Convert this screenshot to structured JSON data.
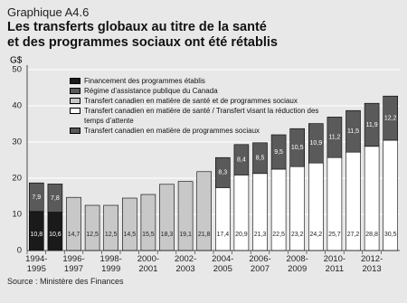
{
  "chart_data": {
    "type": "bar",
    "stacked": true,
    "label": "Graphique A4.6",
    "title": [
      "Les transferts globaux au titre de la santé",
      "et des programmes sociaux ont été rétablis"
    ],
    "y_label": "G$",
    "source": "Source : Ministère des Finances",
    "categories": [
      "1994-1995",
      null,
      "1996-1997",
      null,
      "1998-1999",
      null,
      "2000-2001",
      null,
      "2002-2003",
      null,
      "2004-2005",
      null,
      "2006-2007",
      null,
      "2008-2009",
      null,
      "2010-2011",
      null,
      "2012-2013",
      null
    ],
    "ylim": [
      0,
      50
    ],
    "yticks": [
      0,
      10,
      20,
      30,
      40,
      50
    ],
    "grid": true,
    "series": [
      {
        "name": "Financement des programmes établis",
        "color": "#1a1a1a",
        "values": [
          10.8,
          10.6,
          null,
          null,
          null,
          null,
          null,
          null,
          null,
          null,
          null,
          null,
          null,
          null,
          null,
          null,
          null,
          null,
          null,
          null
        ],
        "value_labels": [
          "10,8",
          "10,6",
          null,
          null,
          null,
          null,
          null,
          null,
          null,
          null,
          null,
          null,
          null,
          null,
          null,
          null,
          null,
          null,
          null,
          null
        ]
      },
      {
        "name": "Régime d’assistance publique du Canada",
        "color": "#5a5a5a",
        "values": [
          7.9,
          7.8,
          null,
          null,
          null,
          null,
          null,
          null,
          null,
          null,
          null,
          null,
          null,
          null,
          null,
          null,
          null,
          null,
          null,
          null
        ],
        "value_labels": [
          "7,9",
          "7,8",
          null,
          null,
          null,
          null,
          null,
          null,
          null,
          null,
          null,
          null,
          null,
          null,
          null,
          null,
          null,
          null,
          null,
          null
        ]
      },
      {
        "name": "Transfert canadien en matière de santé et de programmes sociaux",
        "color": "#c8c8c8",
        "values": [
          null,
          null,
          14.7,
          12.5,
          12.5,
          14.5,
          15.5,
          18.3,
          19.1,
          21.8,
          null,
          null,
          null,
          null,
          null,
          null,
          null,
          null,
          null,
          null
        ],
        "value_labels": [
          null,
          null,
          "14,7",
          "12,5",
          "12,5",
          "14,5",
          "15,5",
          "18,3",
          "19,1",
          "21,8",
          null,
          null,
          null,
          null,
          null,
          null,
          null,
          null,
          null,
          null
        ]
      },
      {
        "name": "Transfert canadien en matière de santé / Transfert visant la réduction des temps d’attente",
        "color": "#ffffff",
        "values": [
          null,
          null,
          null,
          null,
          null,
          null,
          null,
          null,
          null,
          null,
          17.4,
          20.9,
          21.3,
          22.5,
          23.2,
          24.2,
          25.7,
          27.2,
          28.8,
          30.5
        ],
        "value_labels": [
          null,
          null,
          null,
          null,
          null,
          null,
          null,
          null,
          null,
          null,
          "17,4",
          "20,9",
          "21,3",
          "22,5",
          "23,2",
          "24,2",
          "25,7",
          "27,2",
          "28,8",
          "30,5"
        ]
      },
      {
        "name": "Transfert canadien en matière de programmes sociaux",
        "color": "#5a5a5a",
        "values": [
          null,
          null,
          null,
          null,
          null,
          null,
          null,
          null,
          null,
          null,
          8.3,
          8.4,
          8.5,
          9.5,
          10.5,
          10.9,
          11.2,
          11.5,
          11.9,
          12.2
        ],
        "value_labels": [
          null,
          null,
          null,
          null,
          null,
          null,
          null,
          null,
          null,
          null,
          "8,3",
          "8,4",
          "8,5",
          "9,5",
          "10,5",
          "10,9",
          "11,2",
          "11,5",
          "11,9",
          "12,2"
        ]
      }
    ]
  }
}
